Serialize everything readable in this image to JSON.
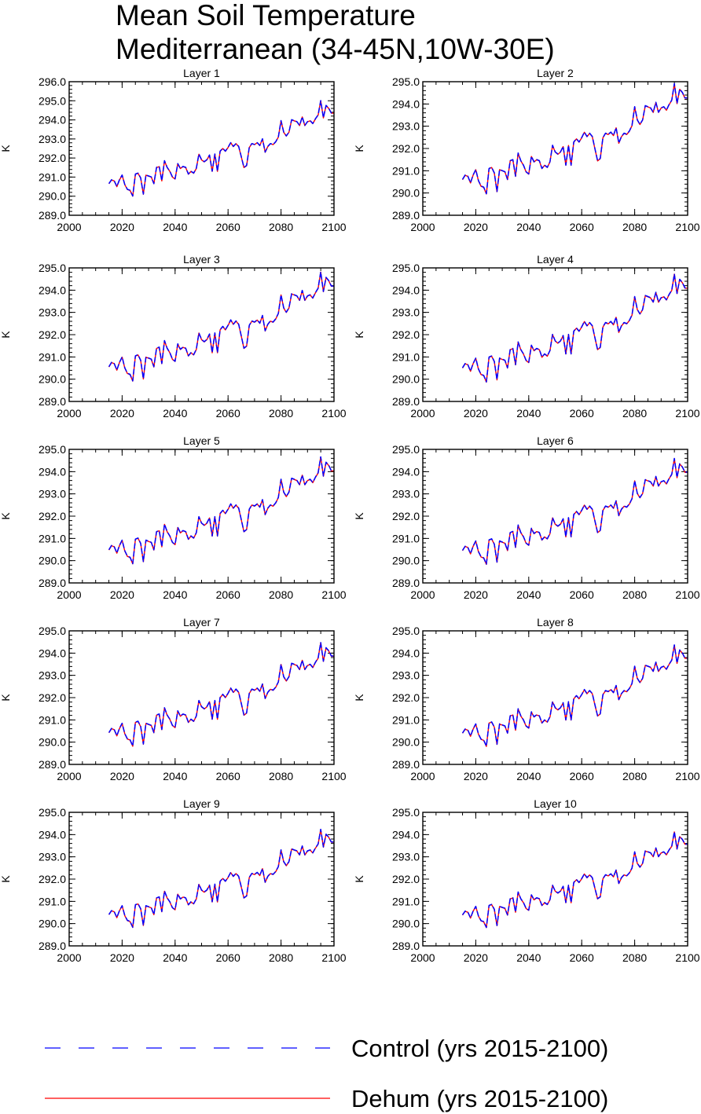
{
  "title": {
    "line1": "Mean Soil Temperature",
    "line2": "Mediterranean (34-45N,10W-30E)"
  },
  "legend": {
    "items": [
      {
        "label": "Control (yrs 2015-2100)",
        "color": "#0000ff",
        "dash": "dashed"
      },
      {
        "label": "Dehum (yrs 2015-2100)",
        "color": "#ff0000",
        "dash": "solid"
      }
    ]
  },
  "chart_data": {
    "type": "line",
    "ylabel": "K",
    "xlim": [
      2000,
      2100
    ],
    "xticks": [
      "2000",
      "2020",
      "2040",
      "2060",
      "2080",
      "2100"
    ],
    "years": [
      2015,
      2016,
      2017,
      2018,
      2019,
      2020,
      2021,
      2022,
      2023,
      2024,
      2025,
      2026,
      2027,
      2028,
      2029,
      2030,
      2031,
      2032,
      2033,
      2034,
      2035,
      2036,
      2037,
      2038,
      2039,
      2040,
      2041,
      2042,
      2043,
      2044,
      2045,
      2046,
      2047,
      2048,
      2049,
      2050,
      2051,
      2052,
      2053,
      2054,
      2055,
      2056,
      2057,
      2058,
      2059,
      2060,
      2061,
      2062,
      2063,
      2064,
      2065,
      2066,
      2067,
      2068,
      2069,
      2070,
      2071,
      2072,
      2073,
      2074,
      2075,
      2076,
      2077,
      2078,
      2079,
      2080,
      2081,
      2082,
      2083,
      2084,
      2085,
      2086,
      2087,
      2088,
      2089,
      2090,
      2091,
      2092,
      2093,
      2094,
      2095,
      2096,
      2097,
      2098,
      2099,
      2100
    ],
    "base_anomaly": [
      0.0,
      0.2,
      0.15,
      -0.15,
      0.2,
      0.45,
      -0.05,
      -0.3,
      -0.35,
      -0.65,
      0.5,
      0.55,
      0.3,
      -0.55,
      0.45,
      0.4,
      0.35,
      0.0,
      0.85,
      0.9,
      0.15,
      1.2,
      0.85,
      0.65,
      0.35,
      0.25,
      1.05,
      0.8,
      0.9,
      0.85,
      0.5,
      0.65,
      0.55,
      0.8,
      1.55,
      1.25,
      1.15,
      1.25,
      1.5,
      0.65,
      1.55,
      0.65,
      1.7,
      1.85,
      1.7,
      1.9,
      2.15,
      1.95,
      2.1,
      1.95,
      1.4,
      0.85,
      0.95,
      1.9,
      2.1,
      2.05,
      2.15,
      2.0,
      2.35,
      1.65,
      1.95,
      2.1,
      2.05,
      2.2,
      2.45,
      3.3,
      2.7,
      2.5,
      2.7,
      3.35,
      3.3,
      3.25,
      3.05,
      3.5,
      3.05,
      3.25,
      3.3,
      3.15,
      3.4,
      3.6,
      4.35,
      3.45,
      4.1,
      3.95,
      3.7,
      3.7
    ],
    "panels": [
      {
        "title": "Layer 1",
        "yticks": [
          "289.0",
          "290.0",
          "291.0",
          "292.0",
          "293.0",
          "294.0",
          "295.0",
          "296.0"
        ],
        "ylim": [
          289,
          296
        ],
        "base": 290.65,
        "scale": 1.0
      },
      {
        "title": "Layer 2",
        "yticks": [
          "289.0",
          "290.0",
          "291.0",
          "292.0",
          "293.0",
          "294.0",
          "295.0"
        ],
        "ylim": [
          289,
          295
        ],
        "base": 290.6,
        "scale": 0.99
      },
      {
        "title": "Layer 3",
        "yticks": [
          "289.0",
          "290.0",
          "291.0",
          "292.0",
          "293.0",
          "294.0",
          "295.0"
        ],
        "ylim": [
          289,
          295
        ],
        "base": 290.55,
        "scale": 0.98
      },
      {
        "title": "Layer 4",
        "yticks": [
          "289.0",
          "290.0",
          "291.0",
          "292.0",
          "293.0",
          "294.0",
          "295.0"
        ],
        "ylim": [
          289,
          295
        ],
        "base": 290.5,
        "scale": 0.97
      },
      {
        "title": "Layer 5",
        "yticks": [
          "289.0",
          "290.0",
          "291.0",
          "292.0",
          "293.0",
          "294.0",
          "295.0"
        ],
        "ylim": [
          289,
          295
        ],
        "base": 290.48,
        "scale": 0.96
      },
      {
        "title": "Layer 6",
        "yticks": [
          "289.0",
          "290.0",
          "291.0",
          "292.0",
          "293.0",
          "294.0",
          "295.0"
        ],
        "ylim": [
          289,
          295
        ],
        "base": 290.45,
        "scale": 0.95
      },
      {
        "title": "Layer 7",
        "yticks": [
          "289.0",
          "290.0",
          "291.0",
          "292.0",
          "293.0",
          "294.0",
          "295.0"
        ],
        "ylim": [
          289,
          295
        ],
        "base": 290.42,
        "scale": 0.93
      },
      {
        "title": "Layer 8",
        "yticks": [
          "289.0",
          "290.0",
          "291.0",
          "292.0",
          "293.0",
          "294.0",
          "295.0"
        ],
        "ylim": [
          289,
          295
        ],
        "base": 290.4,
        "scale": 0.91
      },
      {
        "title": "Layer 9",
        "yticks": [
          "289.0",
          "290.0",
          "291.0",
          "292.0",
          "293.0",
          "294.0",
          "295.0"
        ],
        "ylim": [
          289,
          295
        ],
        "base": 290.4,
        "scale": 0.88
      },
      {
        "title": "Layer 10",
        "yticks": [
          "289.0",
          "290.0",
          "291.0",
          "292.0",
          "293.0",
          "294.0",
          "295.0"
        ],
        "ylim": [
          289,
          295
        ],
        "base": 290.38,
        "scale": 0.86
      }
    ]
  }
}
